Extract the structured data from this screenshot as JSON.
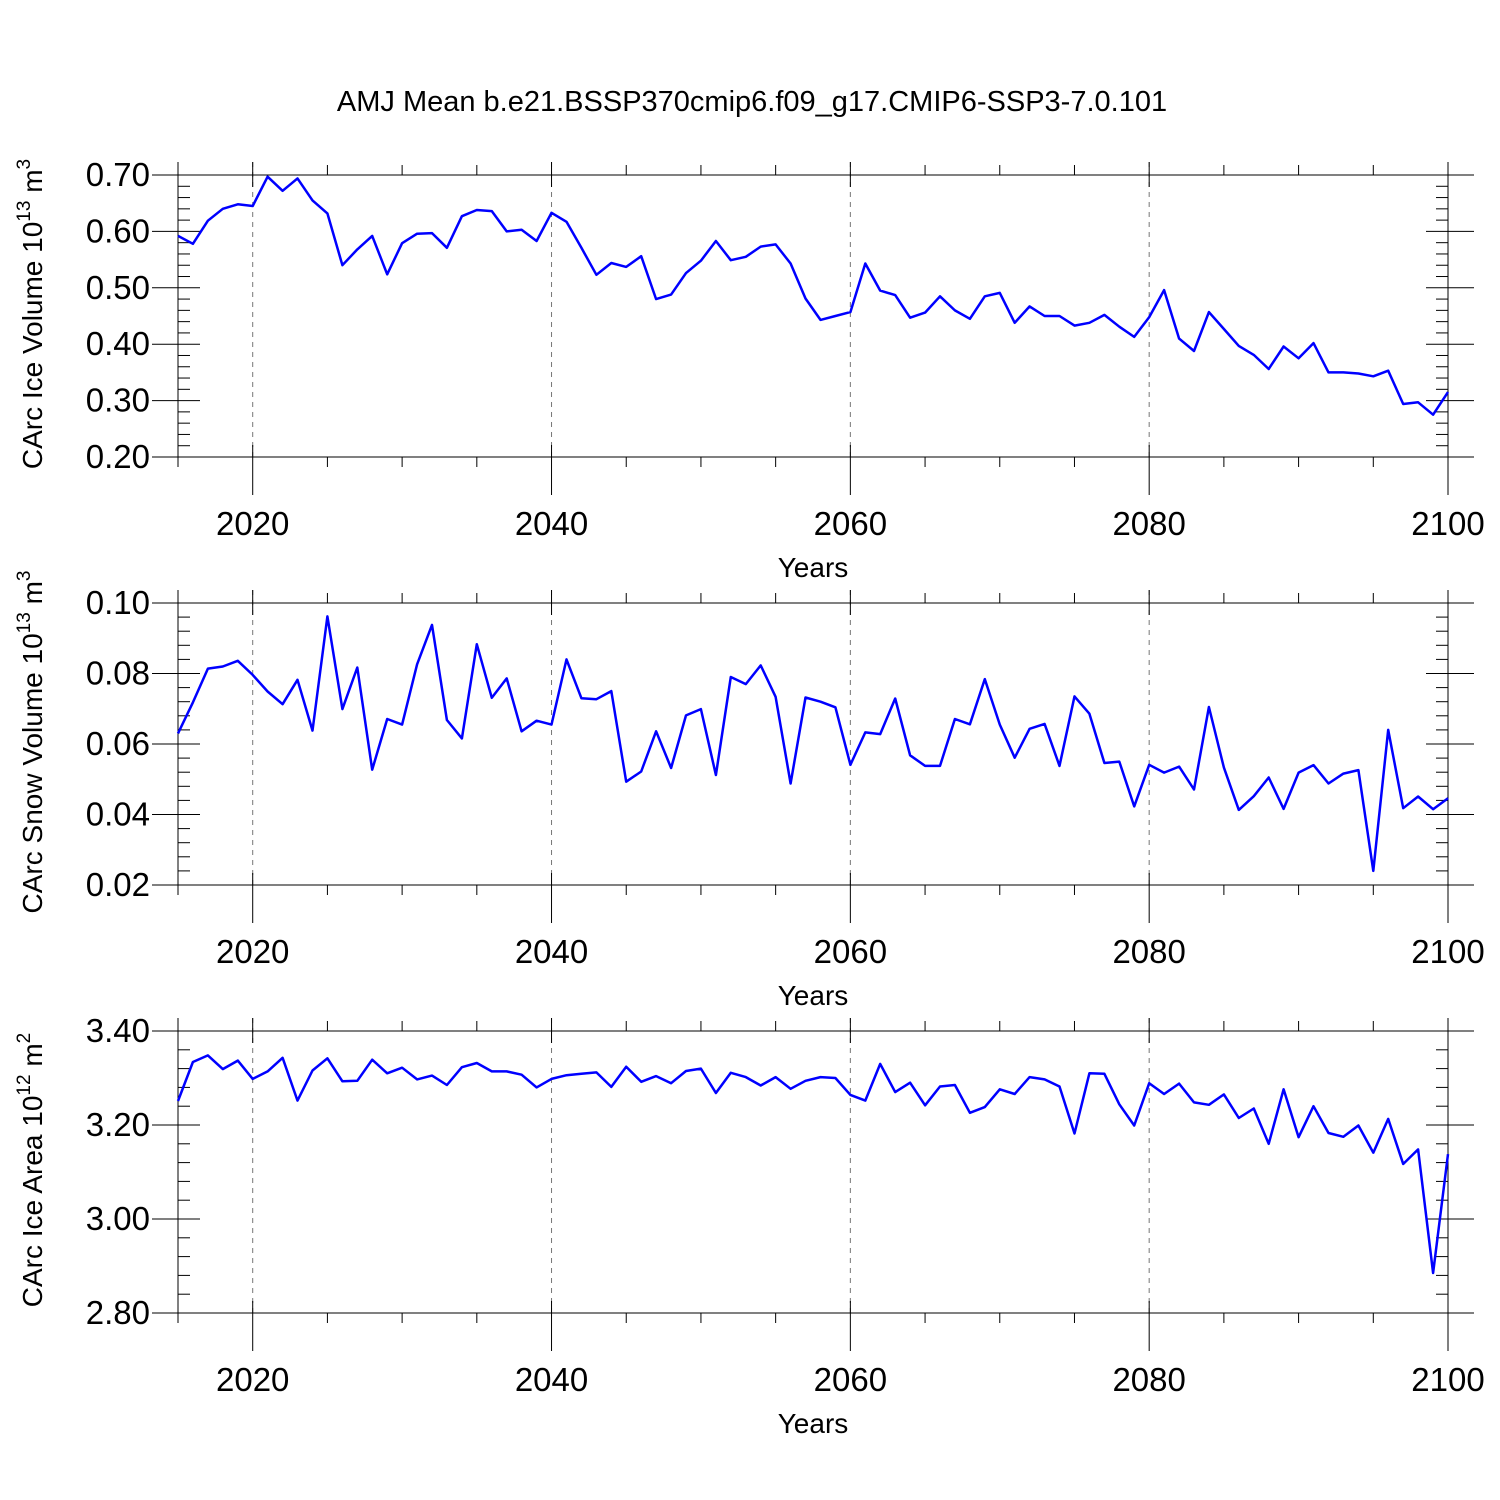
{
  "figure_title": "AMJ Mean b.e21.BSSP370cmip6.f09_g17.CMIP6-SSP3-7.0.101",
  "line_color": "#0000ff",
  "chart_data": [
    {
      "type": "line",
      "ylabel": "CArc Ice Volume 10",
      "ylabel_exp": "13",
      "ylabel_unit": " m",
      "ylabel_unit_exp": "3",
      "xlabel": "Years",
      "xlim": [
        2015,
        2100
      ],
      "ylim": [
        0.2,
        0.7
      ],
      "yticks": [
        "0.20",
        "0.30",
        "0.40",
        "0.50",
        "0.60",
        "0.70"
      ],
      "yticks_values": [
        0.2,
        0.3,
        0.4,
        0.5,
        0.6,
        0.7
      ],
      "xticks": [
        "2020",
        "2040",
        "2060",
        "2080",
        "2100"
      ],
      "xticks_values": [
        2020,
        2040,
        2060,
        2080,
        2100
      ],
      "grid": "vertical dashed at major x ticks",
      "x_start": 2015,
      "values": [
        0.592,
        0.578,
        0.619,
        0.64,
        0.648,
        0.645,
        0.697,
        0.672,
        0.694,
        0.655,
        0.632,
        0.54,
        0.568,
        0.592,
        0.524,
        0.579,
        0.596,
        0.597,
        0.571,
        0.627,
        0.638,
        0.636,
        0.6,
        0.603,
        0.583,
        0.633,
        0.617,
        0.571,
        0.523,
        0.544,
        0.537,
        0.556,
        0.48,
        0.488,
        0.526,
        0.548,
        0.583,
        0.549,
        0.555,
        0.573,
        0.577,
        0.543,
        0.481,
        0.443,
        0.45,
        0.457,
        0.543,
        0.495,
        0.487,
        0.447,
        0.456,
        0.485,
        0.46,
        0.445,
        0.485,
        0.491,
        0.438,
        0.467,
        0.45,
        0.45,
        0.433,
        0.438,
        0.452,
        0.431,
        0.413,
        0.448,
        0.496,
        0.41,
        0.388,
        0.457,
        0.427,
        0.397,
        0.381,
        0.356,
        0.396,
        0.375,
        0.402,
        0.35,
        0.35,
        0.348,
        0.343,
        0.353,
        0.294,
        0.297,
        0.275,
        0.315
      ]
    },
    {
      "type": "line",
      "ylabel": "CArc Snow Volume 10",
      "ylabel_exp": "13",
      "ylabel_unit": " m",
      "ylabel_unit_exp": "3",
      "xlabel": "Years",
      "xlim": [
        2015,
        2100
      ],
      "ylim": [
        0.02,
        0.1
      ],
      "yticks": [
        "0.02",
        "0.04",
        "0.06",
        "0.08",
        "0.10"
      ],
      "yticks_values": [
        0.02,
        0.04,
        0.06,
        0.08,
        0.1
      ],
      "xticks": [
        "2020",
        "2040",
        "2060",
        "2080",
        "2100"
      ],
      "xticks_values": [
        2020,
        2040,
        2060,
        2080,
        2100
      ],
      "grid": "vertical dashed at major x ticks",
      "x_start": 2015,
      "values": [
        0.063,
        0.0718,
        0.0814,
        0.082,
        0.0836,
        0.0796,
        0.0749,
        0.0713,
        0.0782,
        0.0638,
        0.0962,
        0.0699,
        0.0817,
        0.0527,
        0.0671,
        0.0655,
        0.0826,
        0.0938,
        0.0668,
        0.0616,
        0.0883,
        0.0731,
        0.0786,
        0.0636,
        0.0666,
        0.0655,
        0.084,
        0.073,
        0.0727,
        0.075,
        0.0493,
        0.0522,
        0.0636,
        0.0532,
        0.0681,
        0.0699,
        0.0512,
        0.079,
        0.077,
        0.0823,
        0.0734,
        0.0488,
        0.0732,
        0.072,
        0.0704,
        0.0541,
        0.0633,
        0.0628,
        0.0729,
        0.0568,
        0.0538,
        0.0538,
        0.0671,
        0.0656,
        0.0784,
        0.0655,
        0.0561,
        0.0643,
        0.0657,
        0.0538,
        0.0735,
        0.0686,
        0.0546,
        0.055,
        0.0423,
        0.0541,
        0.0519,
        0.0536,
        0.0471,
        0.0705,
        0.0533,
        0.0413,
        0.0452,
        0.0505,
        0.0416,
        0.0519,
        0.054,
        0.0488,
        0.0516,
        0.0526,
        0.024,
        0.064,
        0.0418,
        0.0451,
        0.0415,
        0.0446
      ]
    },
    {
      "type": "line",
      "ylabel": "CArc Ice Area 10",
      "ylabel_exp": "12",
      "ylabel_unit": " m",
      "ylabel_unit_exp": "2",
      "xlabel": "Years",
      "xlim": [
        2015,
        2100
      ],
      "ylim": [
        2.8,
        3.4
      ],
      "yticks": [
        "2.80",
        "3.00",
        "3.20",
        "3.40"
      ],
      "yticks_values": [
        2.8,
        3.0,
        3.2,
        3.4
      ],
      "xticks": [
        "2020",
        "2040",
        "2060",
        "2080",
        "2100"
      ],
      "xticks_values": [
        2020,
        2040,
        2060,
        2080,
        2100
      ],
      "grid": "vertical dashed at major x ticks",
      "x_start": 2015,
      "values": [
        3.251,
        3.334,
        3.348,
        3.319,
        3.337,
        3.298,
        3.314,
        3.343,
        3.252,
        3.316,
        3.342,
        3.293,
        3.294,
        3.339,
        3.31,
        3.322,
        3.297,
        3.305,
        3.285,
        3.323,
        3.332,
        3.314,
        3.314,
        3.307,
        3.28,
        3.298,
        3.306,
        3.309,
        3.312,
        3.281,
        3.324,
        3.292,
        3.304,
        3.289,
        3.315,
        3.32,
        3.268,
        3.311,
        3.302,
        3.284,
        3.302,
        3.277,
        3.294,
        3.302,
        3.3,
        3.264,
        3.252,
        3.33,
        3.27,
        3.29,
        3.242,
        3.282,
        3.285,
        3.226,
        3.238,
        3.276,
        3.266,
        3.302,
        3.297,
        3.282,
        3.182,
        3.31,
        3.309,
        3.244,
        3.199,
        3.289,
        3.266,
        3.288,
        3.248,
        3.243,
        3.265,
        3.215,
        3.235,
        3.16,
        3.276,
        3.174,
        3.24,
        3.183,
        3.175,
        3.199,
        3.141,
        3.213,
        3.117,
        3.148,
        2.885,
        3.138
      ]
    }
  ]
}
